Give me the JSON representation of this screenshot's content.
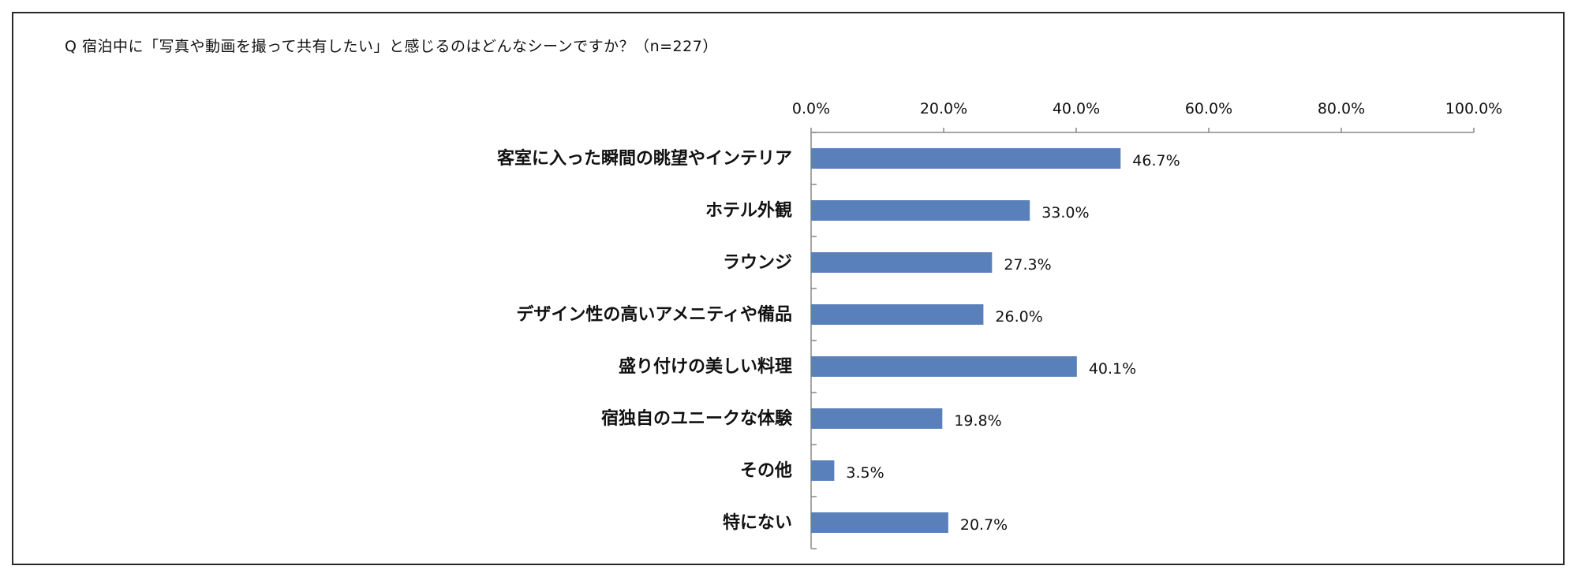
{
  "title": "Q 宿泊中に「写真や動画を撮って共有したい」と感じるのはどんなシーンですか？（n=227）",
  "colors": {
    "bar": "#5a80bb",
    "axis": "#888888",
    "frame": "#2a2a2a"
  },
  "chart_data": {
    "type": "bar",
    "orientation": "horizontal",
    "title": "Q 宿泊中に「写真や動画を撮って共有したい」と感じるのはどんなシーンですか？（n=227）",
    "categories": [
      "客室に入った瞬間の眺望やインテリア",
      "ホテル外観",
      "ラウンジ",
      "デザイン性の高いアメニティや備品",
      "盛り付けの美しい料理",
      "宿独自のユニークな体験",
      "その他",
      "特にない"
    ],
    "values": [
      46.7,
      33.0,
      27.3,
      26.0,
      40.1,
      19.8,
      3.5,
      20.7
    ],
    "value_labels": [
      "46.7%",
      "33.0%",
      "27.3%",
      "26.0%",
      "40.1%",
      "19.8%",
      "3.5%",
      "20.7%"
    ],
    "xlim": [
      0,
      100
    ],
    "x_ticks": [
      0,
      20,
      40,
      60,
      80,
      100
    ],
    "x_tick_labels": [
      "0.0%",
      "20.0%",
      "40.0%",
      "60.0%",
      "80.0%",
      "100.0%"
    ],
    "x_axis_position": "top",
    "xlabel": "",
    "ylabel": "",
    "grid": false,
    "legend": "none"
  }
}
